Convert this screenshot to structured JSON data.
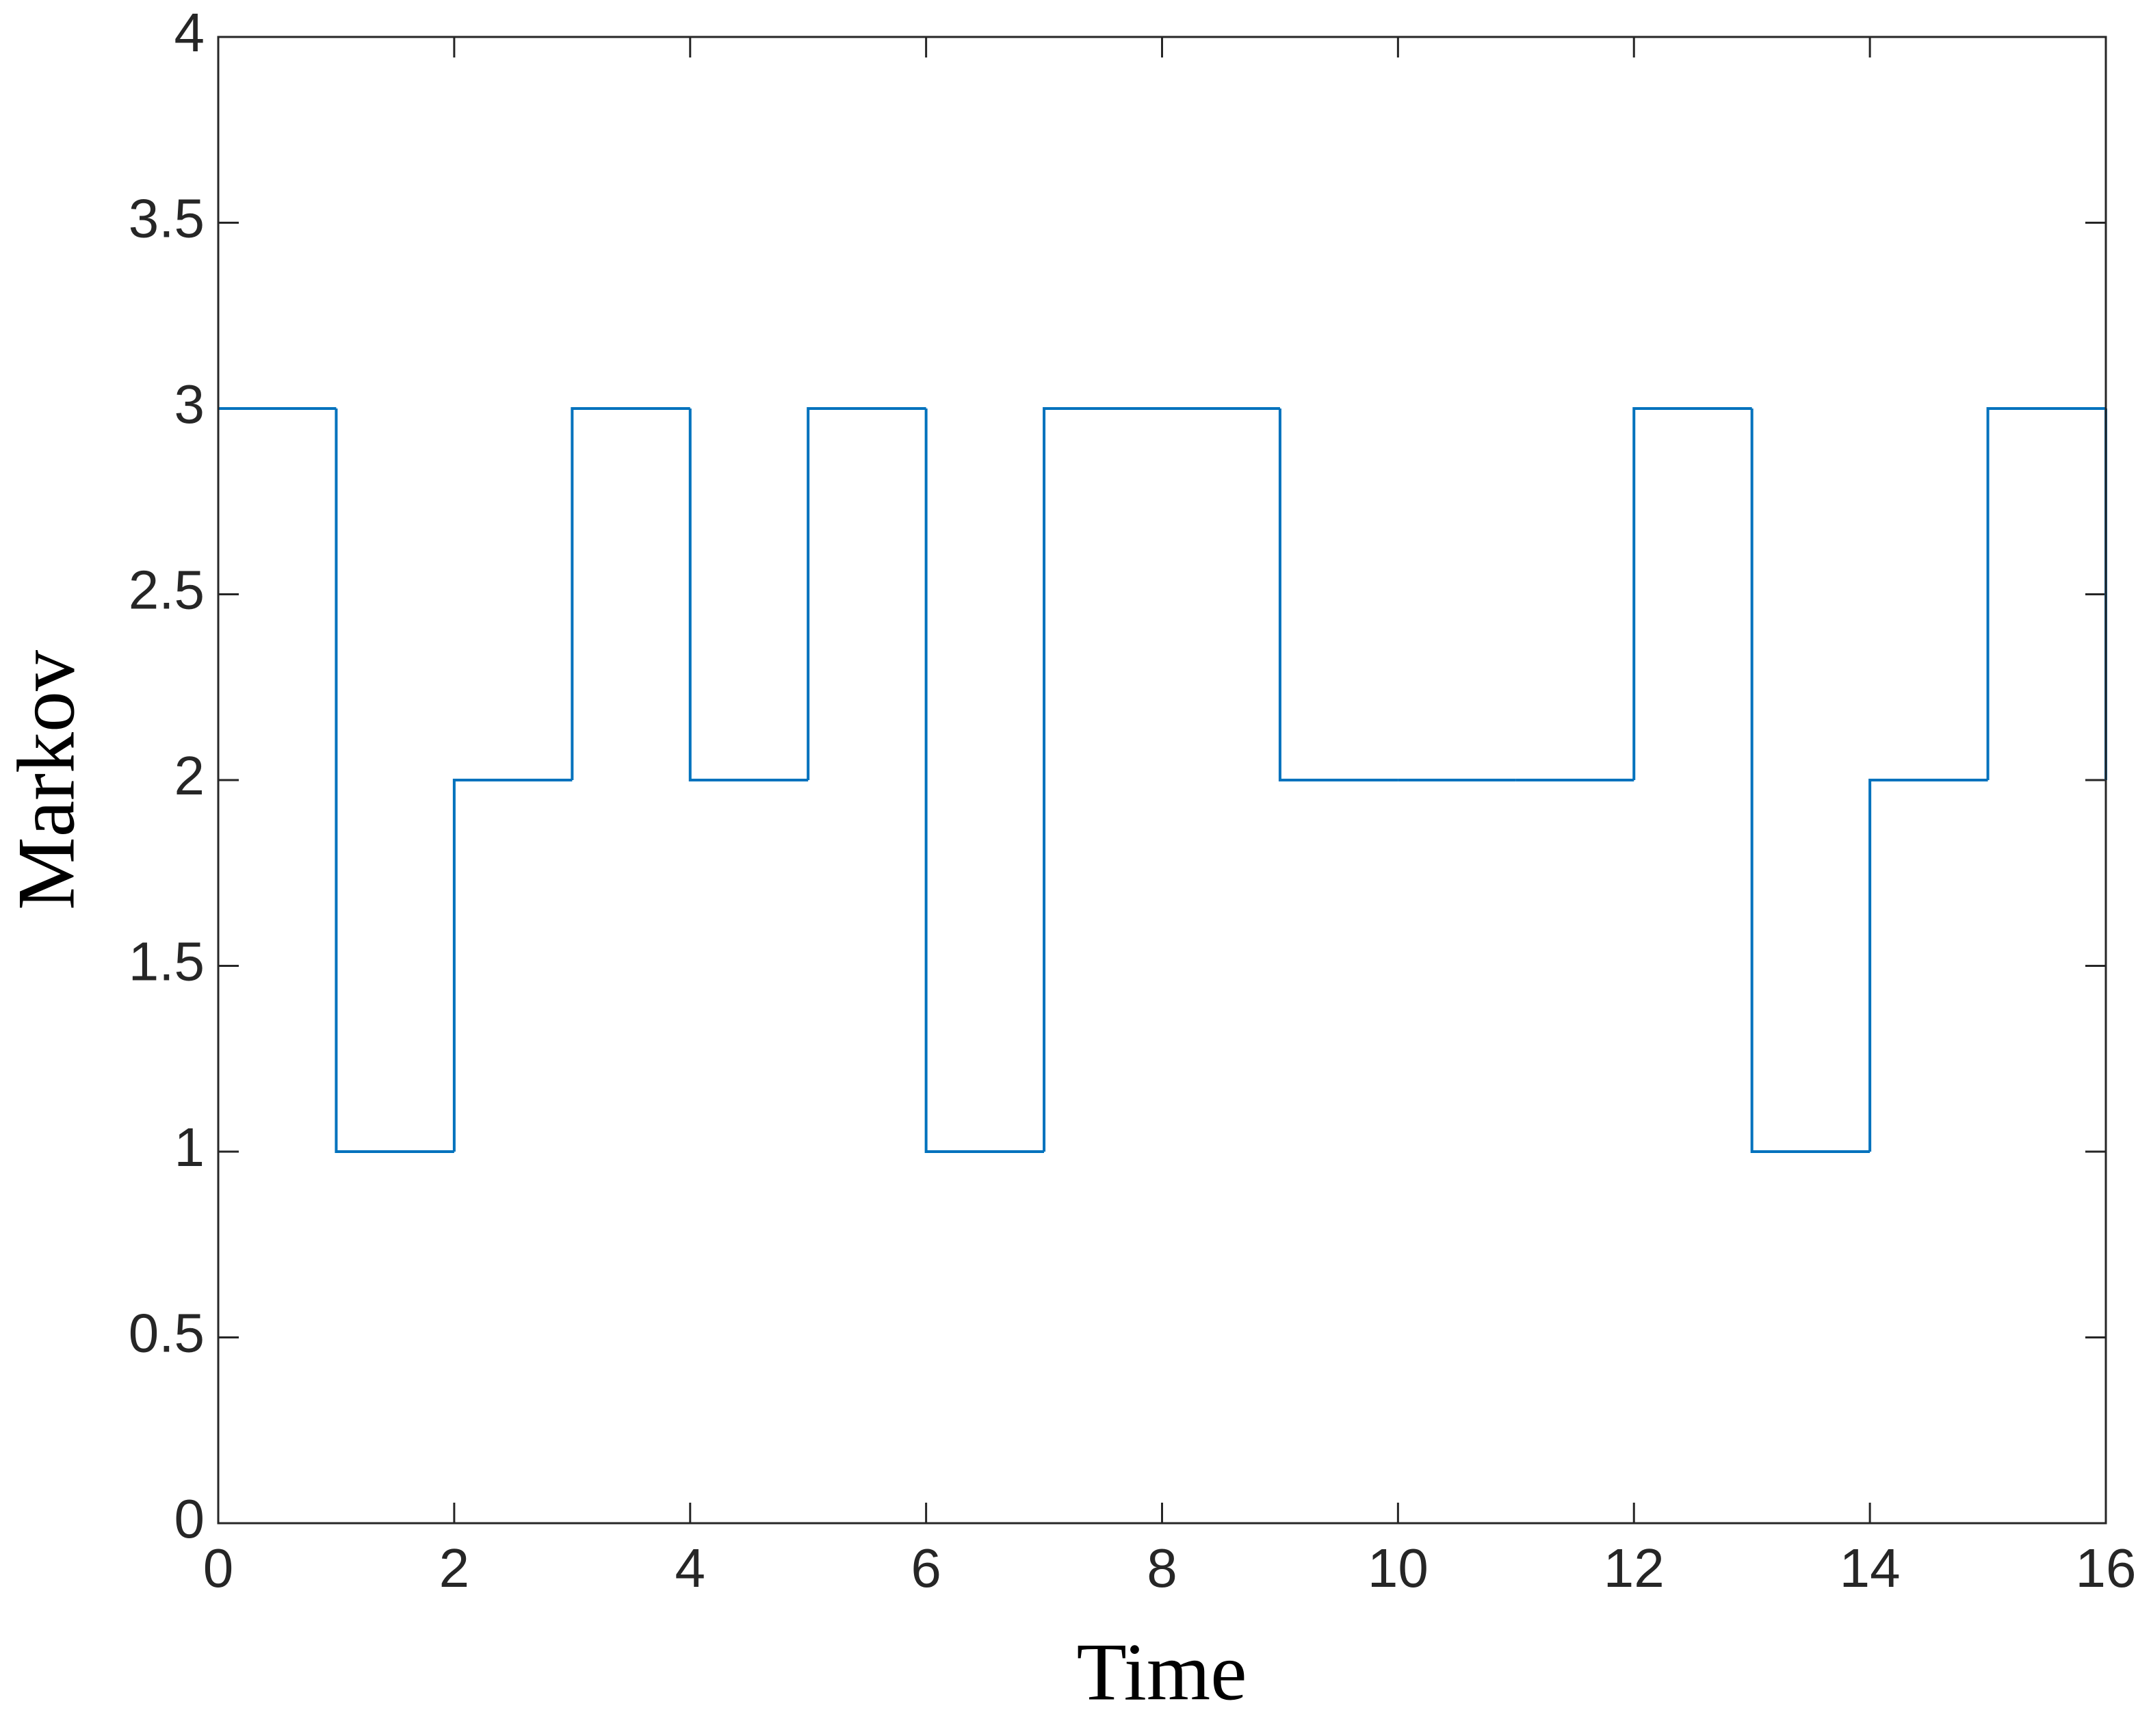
{
  "chart_data": {
    "type": "step",
    "xlabel": "Time",
    "ylabel": "Markov",
    "x": [
      0,
      1,
      2,
      3,
      4,
      5,
      6,
      7,
      8,
      9,
      10,
      11,
      12,
      13,
      14,
      15,
      16
    ],
    "values": [
      3,
      1,
      2,
      3,
      2,
      3,
      1,
      3,
      3,
      2,
      2,
      2,
      3,
      1,
      2,
      3,
      2
    ],
    "color": "#0072bd",
    "xlim": [
      0,
      16
    ],
    "xticks": [
      0,
      2,
      4,
      6,
      8,
      10,
      12,
      14,
      16
    ],
    "ylim": [
      0,
      4
    ],
    "yticks": [
      0,
      0.5,
      1,
      1.5,
      2,
      2.5,
      3,
      3.5,
      4
    ],
    "grid": false
  }
}
